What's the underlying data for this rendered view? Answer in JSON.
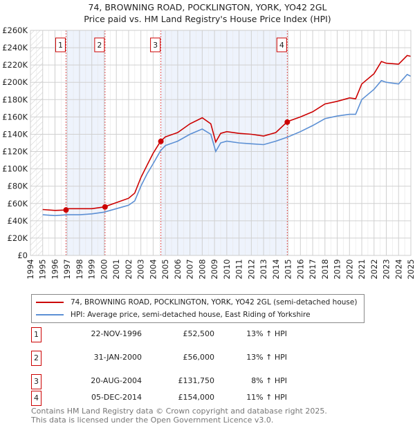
{
  "chart_data": {
    "type": "line",
    "title": "74, BROWNING ROAD, POCKLINGTON, YORK, YO42 2GL",
    "subtitle": "Price paid vs. HM Land Registry's House Price Index (HPI)",
    "xlim": [
      1994,
      2025
    ],
    "ylim": [
      0,
      260000
    ],
    "x_ticks": [
      "1994",
      "1995",
      "1996",
      "1997",
      "1998",
      "1999",
      "2000",
      "2001",
      "2002",
      "2003",
      "2004",
      "2005",
      "2006",
      "2007",
      "2008",
      "2009",
      "2010",
      "2011",
      "2012",
      "2013",
      "2014",
      "2015",
      "2016",
      "2017",
      "2018",
      "2019",
      "2020",
      "2021",
      "2022",
      "2023",
      "2024",
      "2025"
    ],
    "y_ticks": [
      {
        "v": 0,
        "label": "£0"
      },
      {
        "v": 20000,
        "label": "£20K"
      },
      {
        "v": 40000,
        "label": "£40K"
      },
      {
        "v": 60000,
        "label": "£60K"
      },
      {
        "v": 80000,
        "label": "£80K"
      },
      {
        "v": 100000,
        "label": "£100K"
      },
      {
        "v": 120000,
        "label": "£120K"
      },
      {
        "v": 140000,
        "label": "£140K"
      },
      {
        "v": 160000,
        "label": "£160K"
      },
      {
        "v": 180000,
        "label": "£180K"
      },
      {
        "v": 200000,
        "label": "£200K"
      },
      {
        "v": 220000,
        "label": "£220K"
      },
      {
        "v": 240000,
        "label": "£240K"
      },
      {
        "v": 260000,
        "label": "£260K"
      }
    ],
    "grid": true,
    "series": [
      {
        "name": "74, BROWNING ROAD, POCKLINGTON, YORK, YO42 2GL (semi-detached house)",
        "color": "#cc0000",
        "x": [
          1995,
          1996,
          1996.9,
          1997,
          1998,
          1999,
          2000,
          2001,
          2002,
          2002.5,
          2003,
          2003.5,
          2004,
          2004.6,
          2005,
          2006,
          2007,
          2008,
          2008.7,
          2009.1,
          2009.5,
          2010,
          2011,
          2012,
          2013,
          2014,
          2014.9,
          2015,
          2016,
          2017,
          2018,
          2019,
          2020,
          2020.5,
          2021,
          2022,
          2022.6,
          2023,
          2024,
          2024.7,
          2025
        ],
        "y": [
          53000,
          52000,
          52500,
          54000,
          54000,
          54000,
          56000,
          61000,
          66000,
          72000,
          90000,
          104000,
          118000,
          131750,
          137000,
          142000,
          152000,
          159000,
          152000,
          131000,
          141000,
          143000,
          141000,
          140000,
          138000,
          142000,
          154000,
          155000,
          160000,
          166000,
          175000,
          178000,
          182000,
          181000,
          198000,
          210000,
          224000,
          222000,
          221000,
          231000,
          230000
        ]
      },
      {
        "name": "HPI: Average price, semi-detached house, East Riding of Yorkshire",
        "color": "#5b8fd4",
        "x": [
          1995,
          1996,
          1997,
          1998,
          1999,
          2000,
          2001,
          2002,
          2002.5,
          2003,
          2003.5,
          2004,
          2004.6,
          2005,
          2006,
          2007,
          2008,
          2008.7,
          2009.1,
          2009.5,
          2010,
          2011,
          2012,
          2013,
          2014,
          2015,
          2016,
          2017,
          2018,
          2019,
          2020,
          2020.5,
          2021,
          2022,
          2022.6,
          2023,
          2024,
          2024.7,
          2025
        ],
        "y": [
          47000,
          46000,
          47000,
          47000,
          48000,
          50000,
          54000,
          58000,
          63000,
          80000,
          94000,
          106000,
          121000,
          127000,
          132000,
          140000,
          146000,
          140000,
          120000,
          130000,
          132000,
          130000,
          129000,
          128000,
          132000,
          137000,
          143000,
          150000,
          158000,
          161000,
          163000,
          163000,
          180000,
          192000,
          202000,
          200000,
          198000,
          209000,
          207000
        ]
      }
    ],
    "sales": [
      {
        "n": "1",
        "x": 1996.9,
        "y": 52500,
        "date": "22-NOV-1996",
        "price": "£52,500",
        "hpi": "13% ↑ HPI"
      },
      {
        "n": "2",
        "x": 2000.08,
        "y": 56000,
        "date": "31-JAN-2000",
        "price": "£56,000",
        "hpi": "13% ↑ HPI"
      },
      {
        "n": "3",
        "x": 2004.63,
        "y": 131750,
        "date": "20-AUG-2004",
        "price": "£131,750",
        "hpi": "8% ↑ HPI"
      },
      {
        "n": "4",
        "x": 2014.93,
        "y": 154000,
        "date": "05-DEC-2014",
        "price": "£154,000",
        "hpi": "11% ↑ HPI"
      }
    ],
    "legend": "below"
  },
  "footer": {
    "line1": "Contains HM Land Registry data © Crown copyright and database right 2025.",
    "line2": "This data is licensed under the Open Government Licence v3.0."
  }
}
